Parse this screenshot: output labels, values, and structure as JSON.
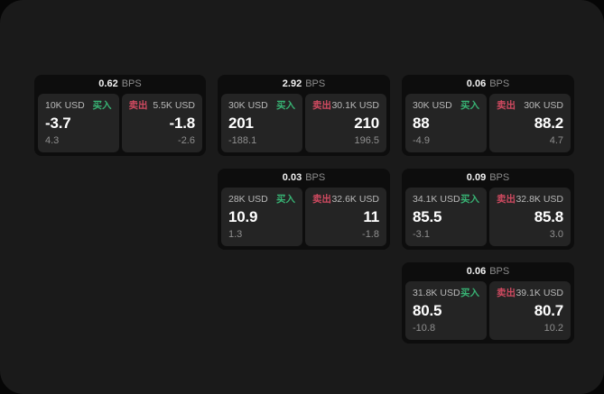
{
  "colors": {
    "panel_bg": "#1a1a1a",
    "card_bg": "#0d0d0d",
    "tile_bg": "#242424",
    "buy_green": "#38b374",
    "sell_red": "#cf4a60",
    "price_white": "#ffffff",
    "muted_gray": "#8f8f8f"
  },
  "cards": [
    {
      "bps_value": "0.62",
      "bps_unit": "BPS",
      "buy": {
        "size": "10K USD",
        "label": "买入",
        "price": "-3.7",
        "change": "4.3"
      },
      "sell": {
        "label": "卖出",
        "size": "5.5K USD",
        "price": "-1.8",
        "change": "-2.6"
      }
    },
    {
      "bps_value": "2.92",
      "bps_unit": "BPS",
      "buy": {
        "size": "30K USD",
        "label": "买入",
        "price": "201",
        "change": "-188.1"
      },
      "sell": {
        "label": "卖出",
        "size": "30.1K USD",
        "price": "210",
        "change": "196.5"
      }
    },
    {
      "bps_value": "0.06",
      "bps_unit": "BPS",
      "buy": {
        "size": "30K USD",
        "label": "买入",
        "price": "88",
        "change": "-4.9"
      },
      "sell": {
        "label": "卖出",
        "size": "30K USD",
        "price": "88.2",
        "change": "4.7"
      }
    },
    {
      "bps_value": "0.03",
      "bps_unit": "BPS",
      "buy": {
        "size": "28K USD",
        "label": "买入",
        "price": "10.9",
        "change": "1.3"
      },
      "sell": {
        "label": "卖出",
        "size": "32.6K USD",
        "price": "11",
        "change": "-1.8"
      }
    },
    {
      "bps_value": "0.09",
      "bps_unit": "BPS",
      "buy": {
        "size": "34.1K USD",
        "label": "买入",
        "price": "85.5",
        "change": "-3.1"
      },
      "sell": {
        "label": "卖出",
        "size": "32.8K USD",
        "price": "85.8",
        "change": "3.0"
      }
    },
    {
      "bps_value": "0.06",
      "bps_unit": "BPS",
      "buy": {
        "size": "31.8K USD",
        "label": "买入",
        "price": "80.5",
        "change": "-10.8"
      },
      "sell": {
        "label": "卖出",
        "size": "39.1K USD",
        "price": "80.7",
        "change": "10.2"
      }
    }
  ]
}
